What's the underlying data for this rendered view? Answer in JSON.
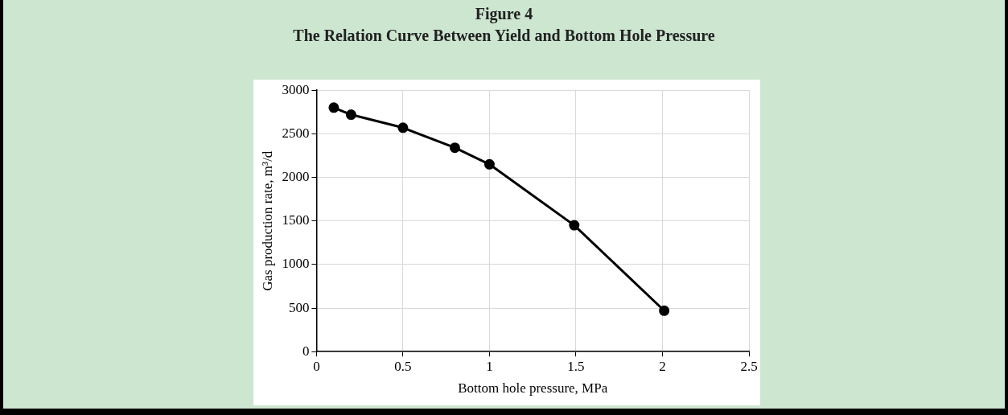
{
  "chart_data": {
    "type": "line",
    "title": "Figure 4",
    "subtitle": "The Relation Curve Between Yield and Bottom Hole Pressure",
    "xlabel": "Bottom hole pressure, MPa",
    "ylabel": "Gas production rate, m³/d",
    "x": [
      0.1,
      0.2,
      0.5,
      0.8,
      1.0,
      1.49,
      2.01
    ],
    "series": [
      {
        "color": "#000000",
        "values": [
          2800,
          2720,
          2570,
          2340,
          2150,
          1450,
          470
        ]
      }
    ],
    "xlim": [
      0,
      2.5
    ],
    "xticks": [
      0,
      0.5,
      1,
      1.5,
      2,
      2.5
    ],
    "ylim": [
      0,
      3000
    ],
    "yticks": [
      0,
      500,
      1000,
      1500,
      2000,
      2500,
      3000
    ],
    "grid": true,
    "marker": "circle",
    "line_style": "solid",
    "legend": false
  }
}
